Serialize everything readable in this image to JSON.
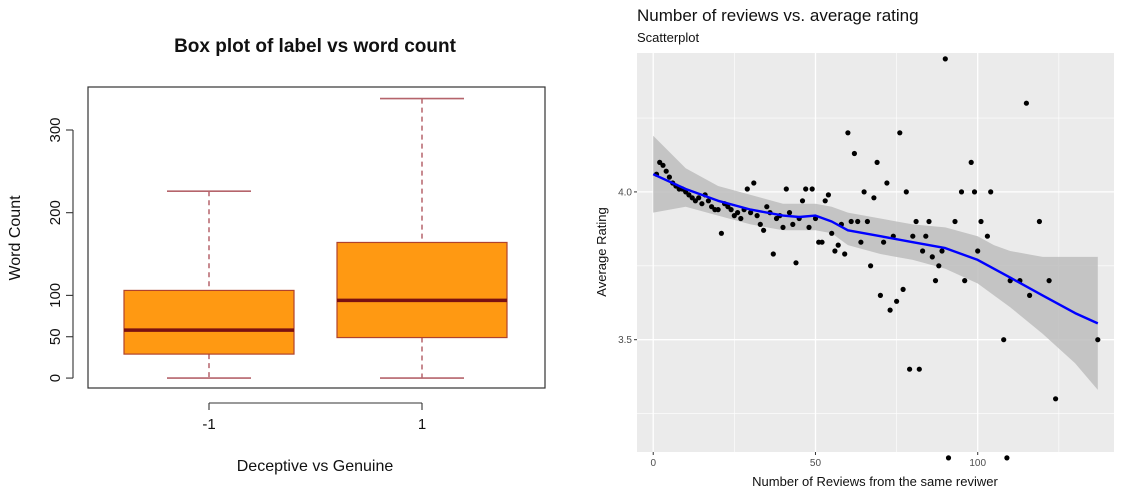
{
  "chart_data": [
    {
      "type": "box",
      "title": "Box plot of label vs word count",
      "xlabel": "Deceptive vs Genuine",
      "ylabel": "Word Count",
      "categories": [
        "-1",
        "1"
      ],
      "ylim": [
        -12,
        352
      ],
      "yticks": [
        0,
        50,
        100,
        200,
        300
      ],
      "boxes": [
        {
          "category": "-1",
          "min": 0,
          "q1": 29,
          "median": 58,
          "q3": 106,
          "max": 226
        },
        {
          "category": "1",
          "min": 0,
          "q1": 49,
          "median": 94,
          "q3": 164,
          "max": 338
        }
      ],
      "colors": {
        "fill": "#ff9912",
        "border": "#b0432c",
        "median": "#7a1111",
        "whisker": "#b5646b"
      }
    },
    {
      "type": "scatter",
      "title": "Number of reviews vs. average rating",
      "subtitle": "Scatterplot",
      "xlabel": "Number of Reviews from the same reviwer",
      "ylabel": "Average Rating",
      "xlim": [
        -5,
        142
      ],
      "ylim": [
        3.12,
        4.47
      ],
      "xticks": [
        0,
        50,
        100
      ],
      "yticks": [
        3.5,
        4.0
      ],
      "points": [
        [
          1,
          4.06
        ],
        [
          2,
          4.1
        ],
        [
          3,
          4.09
        ],
        [
          4,
          4.07
        ],
        [
          5,
          4.05
        ],
        [
          6,
          4.03
        ],
        [
          7,
          4.02
        ],
        [
          8,
          4.01
        ],
        [
          9,
          4.01
        ],
        [
          10,
          4.0
        ],
        [
          11,
          3.99
        ],
        [
          12,
          3.98
        ],
        [
          13,
          3.97
        ],
        [
          14,
          3.98
        ],
        [
          15,
          3.96
        ],
        [
          16,
          3.99
        ],
        [
          17,
          3.97
        ],
        [
          18,
          3.95
        ],
        [
          19,
          3.94
        ],
        [
          20,
          3.94
        ],
        [
          21,
          3.86
        ],
        [
          22,
          3.96
        ],
        [
          23,
          3.95
        ],
        [
          24,
          3.94
        ],
        [
          25,
          3.92
        ],
        [
          26,
          3.93
        ],
        [
          27,
          3.91
        ],
        [
          28,
          3.94
        ],
        [
          29,
          4.01
        ],
        [
          30,
          3.93
        ],
        [
          31,
          4.03
        ],
        [
          32,
          3.92
        ],
        [
          33,
          3.89
        ],
        [
          34,
          3.87
        ],
        [
          35,
          3.95
        ],
        [
          36,
          3.93
        ],
        [
          37,
          3.79
        ],
        [
          38,
          3.91
        ],
        [
          39,
          3.92
        ],
        [
          40,
          3.88
        ],
        [
          41,
          4.01
        ],
        [
          42,
          3.93
        ],
        [
          43,
          3.89
        ],
        [
          44,
          3.76
        ],
        [
          45,
          3.91
        ],
        [
          46,
          3.97
        ],
        [
          47,
          4.01
        ],
        [
          48,
          3.88
        ],
        [
          49,
          4.01
        ],
        [
          50,
          3.91
        ],
        [
          51,
          3.83
        ],
        [
          52,
          3.83
        ],
        [
          53,
          3.97
        ],
        [
          54,
          3.99
        ],
        [
          55,
          3.86
        ],
        [
          56,
          3.8
        ],
        [
          57,
          3.82
        ],
        [
          58,
          3.89
        ],
        [
          59,
          3.79
        ],
        [
          60,
          4.2
        ],
        [
          61,
          3.9
        ],
        [
          62,
          4.13
        ],
        [
          63,
          3.9
        ],
        [
          64,
          3.83
        ],
        [
          65,
          4.0
        ],
        [
          66,
          3.9
        ],
        [
          67,
          3.75
        ],
        [
          68,
          3.98
        ],
        [
          69,
          4.1
        ],
        [
          70,
          3.65
        ],
        [
          71,
          3.83
        ],
        [
          72,
          4.03
        ],
        [
          73,
          3.6
        ],
        [
          74,
          3.85
        ],
        [
          75,
          3.63
        ],
        [
          76,
          4.2
        ],
        [
          77,
          3.67
        ],
        [
          78,
          4.0
        ],
        [
          79,
          3.4
        ],
        [
          80,
          3.85
        ],
        [
          81,
          3.9
        ],
        [
          82,
          3.4
        ],
        [
          83,
          3.8
        ],
        [
          84,
          3.85
        ],
        [
          85,
          3.9
        ],
        [
          86,
          3.78
        ],
        [
          87,
          3.7
        ],
        [
          88,
          3.75
        ],
        [
          89,
          3.8
        ],
        [
          90,
          4.45
        ],
        [
          91,
          3.1
        ],
        [
          93,
          3.9
        ],
        [
          95,
          4.0
        ],
        [
          96,
          3.7
        ],
        [
          98,
          4.1
        ],
        [
          99,
          4.0
        ],
        [
          100,
          3.8
        ],
        [
          101,
          3.9
        ],
        [
          103,
          3.85
        ],
        [
          104,
          4.0
        ],
        [
          108,
          3.5
        ],
        [
          109,
          3.1
        ],
        [
          110,
          3.7
        ],
        [
          113,
          3.7
        ],
        [
          115,
          4.3
        ],
        [
          116,
          3.65
        ],
        [
          119,
          3.9
        ],
        [
          122,
          3.7
        ],
        [
          124,
          3.3
        ],
        [
          137,
          3.5
        ]
      ],
      "smooth_line": [
        [
          0,
          4.06
        ],
        [
          10,
          4.01
        ],
        [
          20,
          3.97
        ],
        [
          30,
          3.94
        ],
        [
          40,
          3.92
        ],
        [
          45,
          3.915
        ],
        [
          50,
          3.92
        ],
        [
          55,
          3.9
        ],
        [
          60,
          3.87
        ],
        [
          70,
          3.85
        ],
        [
          80,
          3.83
        ],
        [
          90,
          3.81
        ],
        [
          100,
          3.77
        ],
        [
          110,
          3.71
        ],
        [
          120,
          3.65
        ],
        [
          130,
          3.59
        ],
        [
          137,
          3.555
        ]
      ],
      "ribbon_upper": [
        [
          0,
          4.19
        ],
        [
          10,
          4.08
        ],
        [
          20,
          4.02
        ],
        [
          30,
          3.99
        ],
        [
          40,
          3.96
        ],
        [
          50,
          3.96
        ],
        [
          55,
          3.95
        ],
        [
          60,
          3.93
        ],
        [
          70,
          3.91
        ],
        [
          80,
          3.89
        ],
        [
          90,
          3.88
        ],
        [
          100,
          3.85
        ],
        [
          105,
          3.82
        ],
        [
          110,
          3.8
        ],
        [
          120,
          3.78
        ],
        [
          130,
          3.78
        ],
        [
          137,
          3.78
        ]
      ],
      "ribbon_lower": [
        [
          0,
          3.93
        ],
        [
          10,
          3.95
        ],
        [
          20,
          3.92
        ],
        [
          30,
          3.89
        ],
        [
          40,
          3.87
        ],
        [
          50,
          3.87
        ],
        [
          55,
          3.86
        ],
        [
          60,
          3.82
        ],
        [
          70,
          3.79
        ],
        [
          80,
          3.77
        ],
        [
          90,
          3.74
        ],
        [
          100,
          3.69
        ],
        [
          110,
          3.61
        ],
        [
          120,
          3.52
        ],
        [
          130,
          3.42
        ],
        [
          137,
          3.33
        ]
      ],
      "grid": true,
      "colors": {
        "panel": "#ebebeb",
        "grid": "#ffffff",
        "point": "#000000",
        "line": "#0000ff",
        "ribbon": "#bdbdbd"
      }
    }
  ]
}
